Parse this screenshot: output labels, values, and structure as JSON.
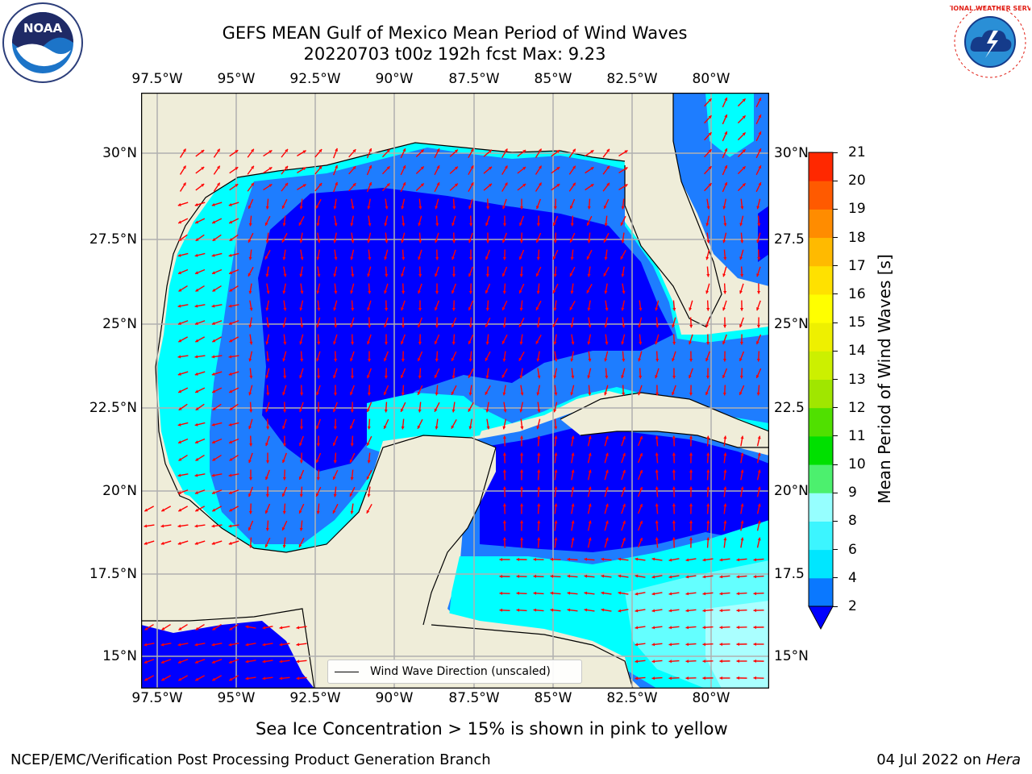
{
  "header": {
    "title_line1": "GEFS MEAN Gulf of Mexico Mean Period of Wind Waves",
    "title_line2": "20220703 t00z 192h fcst   Max: 9.23"
  },
  "logos": {
    "noaa_text": "NOAA",
    "noaa_ring_text": "NATIONAL OCEANIC AND ATMOSPHERIC ADMINISTRATION · U.S. DEPARTMENT OF COMMERCE",
    "nws_ring_text": "NATIONAL WEATHER SERVICE"
  },
  "map": {
    "lon_ticks": [
      "97.5°W",
      "95°W",
      "92.5°W",
      "90°W",
      "87.5°W",
      "85°W",
      "82.5°W",
      "80°W"
    ],
    "lat_ticks": [
      "30°N",
      "27.5°N",
      "25°N",
      "22.5°N",
      "20°N",
      "17.5°N",
      "15°N"
    ],
    "lat_ticks_right": [
      "30°N",
      "27.5",
      "25°N",
      "22.5",
      "20°N",
      "17.5",
      "15°N"
    ],
    "legend_label": "Wind Wave Direction (unscaled)",
    "colors": {
      "land": "#efedd9",
      "ocean_2_4": "#0000ff",
      "ocean_4_6": "#1e7dff",
      "ocean_6_8": "#00ffff",
      "ocean_8_9": "#64ffff",
      "ocean_9_10": "#aaffff",
      "arrows": "#ff0000",
      "gridlines": "#b0b0b0"
    }
  },
  "colorbar": {
    "label": "Mean Period of Wind Waves [s]",
    "ticks": [
      "2",
      "4",
      "6",
      "8",
      "9",
      "10",
      "11",
      "12",
      "13",
      "14",
      "15",
      "16",
      "17",
      "18",
      "19",
      "20",
      "21"
    ],
    "colors": [
      "#0a78ff",
      "#00e6ff",
      "#3cf5ff",
      "#96ffff",
      "#4cf06e",
      "#00e000",
      "#50e000",
      "#a0e600",
      "#ccf000",
      "#eef000",
      "#ffff00",
      "#ffe100",
      "#ffba00",
      "#ff8c00",
      "#ff5a00",
      "#ff2800"
    ],
    "extend_color": "#0000ff"
  },
  "footer": {
    "sea_ice_note": "Sea Ice Concentration > 15% is shown in pink to yellow",
    "credit": "NCEP/EMC/Verification Post Processing Product Generation Branch",
    "date": "04 Jul 2022 on",
    "host": "Hera"
  }
}
